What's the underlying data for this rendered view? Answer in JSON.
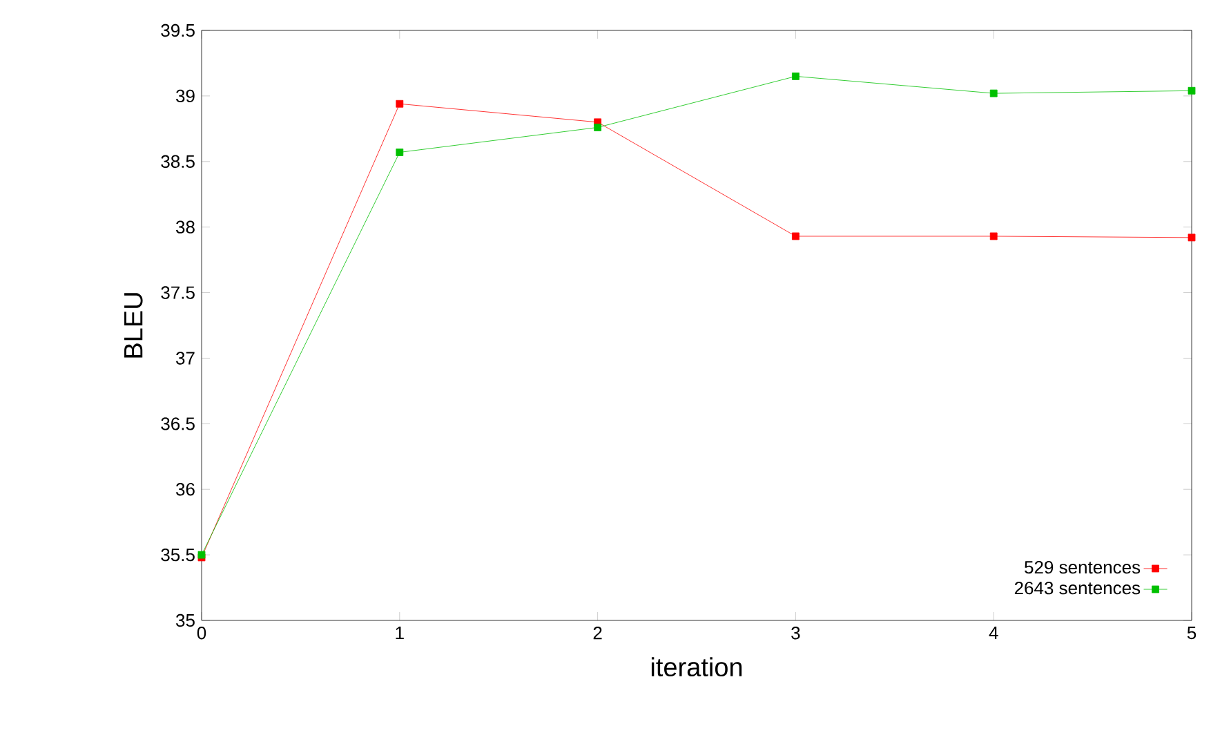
{
  "chart_data": {
    "type": "line",
    "xlabel": "iteration",
    "ylabel": "BLEU",
    "x": [
      0,
      1,
      2,
      3,
      4,
      5
    ],
    "series": [
      {
        "name": "529 sentences",
        "color": "#ff0000",
        "values": [
          35.48,
          38.94,
          38.8,
          37.93,
          37.93,
          37.92
        ]
      },
      {
        "name": "2643 sentences",
        "color": "#00c000",
        "values": [
          35.5,
          38.57,
          38.76,
          39.15,
          39.02,
          39.04
        ]
      }
    ],
    "xlim": [
      0,
      5
    ],
    "ylim": [
      35,
      39.5
    ],
    "xticks": [
      0,
      1,
      2,
      3,
      4,
      5
    ],
    "yticks": [
      35,
      35.5,
      36,
      36.5,
      37,
      37.5,
      38,
      38.5,
      39,
      39.5
    ],
    "grid": false,
    "legend": "bottom right",
    "marker": "square",
    "line_style": "solid"
  }
}
